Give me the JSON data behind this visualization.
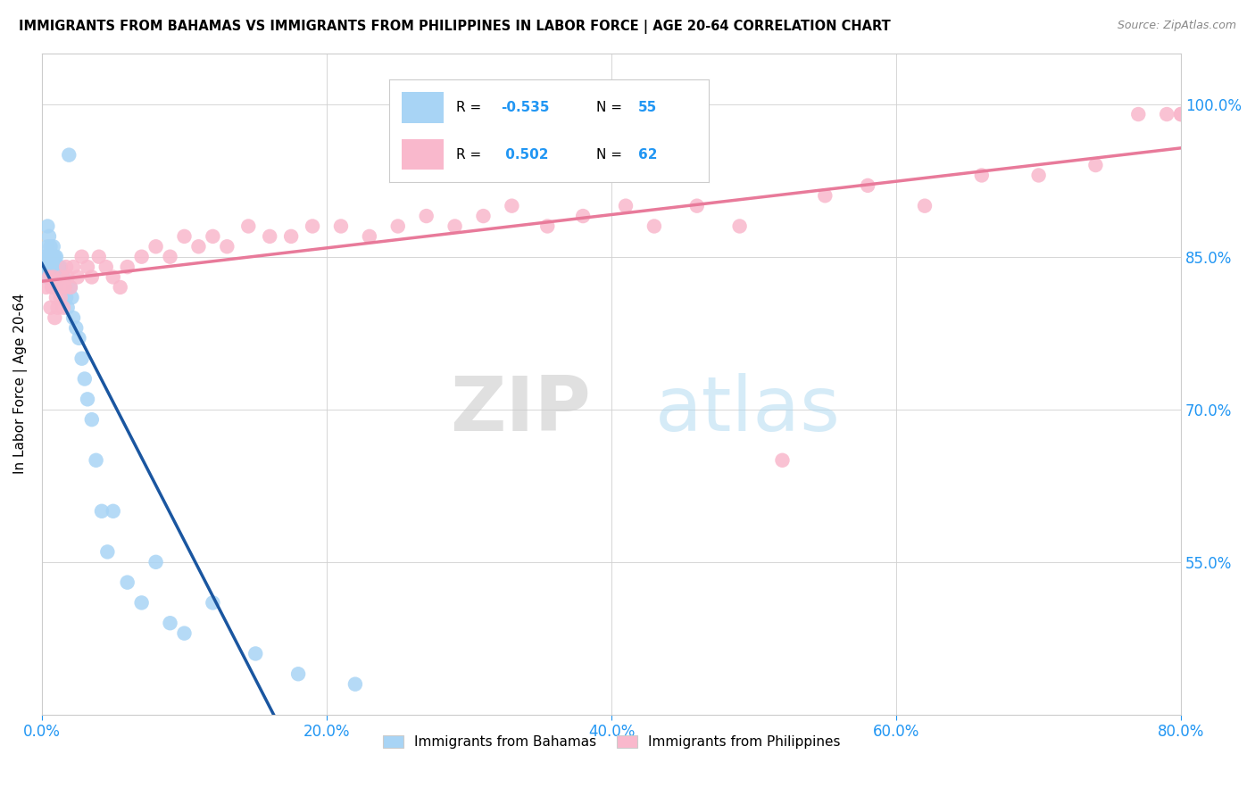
{
  "title": "IMMIGRANTS FROM BAHAMAS VS IMMIGRANTS FROM PHILIPPINES IN LABOR FORCE | AGE 20-64 CORRELATION CHART",
  "source": "Source: ZipAtlas.com",
  "ylabel": "In Labor Force | Age 20-64",
  "x_tick_labels": [
    "0.0%",
    "20.0%",
    "40.0%",
    "60.0%",
    "80.0%"
  ],
  "x_tick_values": [
    0.0,
    0.2,
    0.4,
    0.6,
    0.8
  ],
  "y_tick_labels": [
    "100.0%",
    "85.0%",
    "70.0%",
    "55.0%"
  ],
  "y_tick_values": [
    1.0,
    0.85,
    0.7,
    0.55
  ],
  "xlim": [
    0.0,
    0.8
  ],
  "ylim": [
    0.4,
    1.05
  ],
  "legend_r_bahamas": "-0.535",
  "legend_n_bahamas": "55",
  "legend_r_philippines": "0.502",
  "legend_n_philippines": "62",
  "color_bahamas": "#a8d4f5",
  "color_philippines": "#f9b8cc",
  "color_trendline_bahamas": "#1a56a0",
  "color_trendline_philippines": "#e87a9a",
  "bahamas_x": [
    0.002,
    0.003,
    0.003,
    0.004,
    0.004,
    0.005,
    0.005,
    0.005,
    0.006,
    0.006,
    0.007,
    0.007,
    0.008,
    0.008,
    0.008,
    0.009,
    0.009,
    0.01,
    0.01,
    0.01,
    0.011,
    0.011,
    0.012,
    0.012,
    0.013,
    0.013,
    0.014,
    0.015,
    0.015,
    0.016,
    0.017,
    0.018,
    0.019,
    0.02,
    0.021,
    0.022,
    0.024,
    0.026,
    0.028,
    0.03,
    0.032,
    0.035,
    0.038,
    0.042,
    0.046,
    0.05,
    0.06,
    0.07,
    0.08,
    0.09,
    0.1,
    0.12,
    0.15,
    0.18,
    0.22
  ],
  "bahamas_y": [
    0.85,
    0.84,
    0.83,
    0.88,
    0.86,
    0.85,
    0.84,
    0.87,
    0.86,
    0.85,
    0.84,
    0.83,
    0.86,
    0.85,
    0.84,
    0.85,
    0.84,
    0.85,
    0.84,
    0.83,
    0.84,
    0.83,
    0.84,
    0.83,
    0.84,
    0.83,
    0.82,
    0.83,
    0.82,
    0.82,
    0.81,
    0.8,
    0.95,
    0.82,
    0.81,
    0.79,
    0.78,
    0.77,
    0.75,
    0.73,
    0.71,
    0.69,
    0.65,
    0.6,
    0.56,
    0.6,
    0.53,
    0.51,
    0.55,
    0.49,
    0.48,
    0.51,
    0.46,
    0.44,
    0.43
  ],
  "philippines_x": [
    0.003,
    0.005,
    0.006,
    0.007,
    0.008,
    0.009,
    0.01,
    0.011,
    0.012,
    0.013,
    0.014,
    0.015,
    0.016,
    0.017,
    0.018,
    0.02,
    0.022,
    0.025,
    0.028,
    0.032,
    0.035,
    0.04,
    0.045,
    0.05,
    0.055,
    0.06,
    0.07,
    0.08,
    0.09,
    0.1,
    0.11,
    0.12,
    0.13,
    0.145,
    0.16,
    0.175,
    0.19,
    0.21,
    0.23,
    0.25,
    0.27,
    0.29,
    0.31,
    0.33,
    0.355,
    0.38,
    0.41,
    0.43,
    0.46,
    0.49,
    0.52,
    0.55,
    0.58,
    0.62,
    0.66,
    0.7,
    0.74,
    0.77,
    0.79,
    0.8,
    0.8,
    0.8
  ],
  "philippines_y": [
    0.82,
    0.83,
    0.8,
    0.82,
    0.83,
    0.79,
    0.81,
    0.8,
    0.82,
    0.81,
    0.83,
    0.8,
    0.82,
    0.84,
    0.83,
    0.82,
    0.84,
    0.83,
    0.85,
    0.84,
    0.83,
    0.85,
    0.84,
    0.83,
    0.82,
    0.84,
    0.85,
    0.86,
    0.85,
    0.87,
    0.86,
    0.87,
    0.86,
    0.88,
    0.87,
    0.87,
    0.88,
    0.88,
    0.87,
    0.88,
    0.89,
    0.88,
    0.89,
    0.9,
    0.88,
    0.89,
    0.9,
    0.88,
    0.9,
    0.88,
    0.65,
    0.91,
    0.92,
    0.9,
    0.93,
    0.93,
    0.94,
    0.99,
    0.99,
    0.99,
    0.99,
    0.99
  ]
}
